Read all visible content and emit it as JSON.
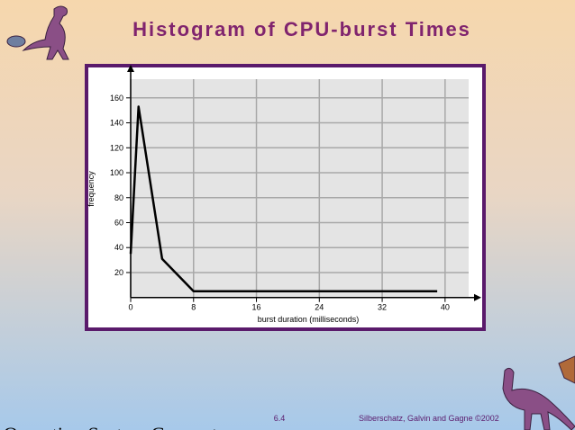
{
  "chart_data": {
    "type": "line",
    "title": "Histogram of CPU-burst Times",
    "x_label": "burst duration (milliseconds)",
    "y_label": "frequency",
    "x": [
      0,
      1,
      4,
      8,
      39
    ],
    "values": [
      35,
      153,
      31,
      5,
      5
    ],
    "color": "#000000",
    "xlim": [
      0,
      43
    ],
    "xticks": [
      0,
      8,
      16,
      24,
      32,
      40
    ],
    "ylim": [
      0,
      175
    ],
    "yticks": [
      20,
      40,
      60,
      80,
      100,
      120,
      140,
      160
    ],
    "grid": true
  },
  "footer": {
    "course": "Operating System Concepts",
    "page": "6.4",
    "credit": "Silberschatz, Galvin and Gagne ©2002"
  }
}
